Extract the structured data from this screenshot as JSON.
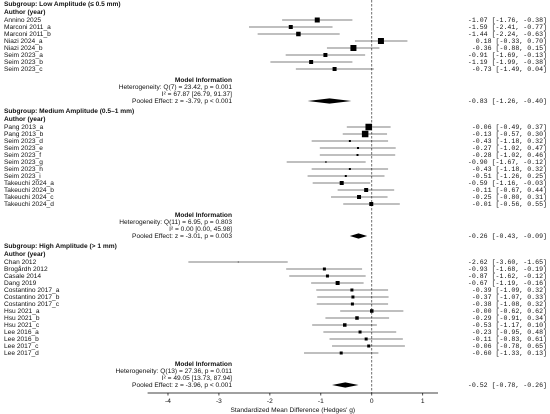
{
  "chart_data": {
    "type": "forest",
    "xlabel": "Standardized Mean Difference (Hedges' g)",
    "xlim": [
      -4.4,
      1.3
    ],
    "xticks": [
      -4,
      -3,
      -2,
      -1,
      0,
      1
    ],
    "reference_line": 0,
    "color": "#000000",
    "subgroups": [
      {
        "title": "Subgroup: Low Amplitude (≤ 0.5 mm)",
        "column_header": "Author (year)",
        "studies": [
          {
            "name": "Annino 2025",
            "estimate": -1.07,
            "ci": [
              -1.76,
              -0.38
            ],
            "weight": 5,
            "label": "-1.07 [-1.76, -0.38]"
          },
          {
            "name": "Marconi 2011_a",
            "estimate": -1.59,
            "ci": [
              -2.41,
              -0.77
            ],
            "weight": 4,
            "label": "-1.59 [-2.41, -0.77]"
          },
          {
            "name": "Marconi 2011_b",
            "estimate": -1.44,
            "ci": [
              -2.24,
              -0.63
            ],
            "weight": 4.5,
            "label": "-1.44 [-2.24, -0.63]"
          },
          {
            "name": "Niazi 2024_a",
            "estimate": 0.18,
            "ci": [
              -0.33,
              0.7
            ],
            "weight": 6,
            "label": "0.18 [-0.33, 0.70]"
          },
          {
            "name": "Niazi 2024_b",
            "estimate": -0.36,
            "ci": [
              -0.88,
              0.15
            ],
            "weight": 6,
            "label": "-0.36 [-0.88, 0.15]"
          },
          {
            "name": "Seim 2023_a",
            "estimate": -0.91,
            "ci": [
              -1.69,
              -0.13
            ],
            "weight": 4,
            "label": "-0.91 [-1.69, -0.13]"
          },
          {
            "name": "Seim 2023_b",
            "estimate": -1.19,
            "ci": [
              -1.99,
              -0.38
            ],
            "weight": 4,
            "label": "-1.19 [-1.99, -0.38]"
          },
          {
            "name": "Seim 2023_c",
            "estimate": -0.73,
            "ci": [
              -1.49,
              0.04
            ],
            "weight": 4,
            "label": "-0.73 [-1.49, 0.04]"
          }
        ],
        "model": {
          "heading": "Model Information",
          "heterogeneity": "Heterogeneity: Q(7) = 23.42, p = 0.001",
          "i2": "I² = 67.87 [26.79, 91.37]",
          "pooled_text": "Pooled Effect: z = -3.79, p < 0.001",
          "estimate": -0.83,
          "ci": [
            -1.26,
            -0.4
          ],
          "label": "-0.83 [-1.26, -0.40]"
        }
      },
      {
        "title": "Subgroup: Medium Amplitude (0.5–1 mm)",
        "column_header": "Author (year)",
        "studies": [
          {
            "name": "Pang 2013_a",
            "estimate": -0.06,
            "ci": [
              -0.49,
              0.37
            ],
            "weight": 6.5,
            "label": "-0.06 [-0.49, 0.37]"
          },
          {
            "name": "Pang 2013_b",
            "estimate": -0.13,
            "ci": [
              -0.57,
              0.3
            ],
            "weight": 6.5,
            "label": "-0.13 [-0.57, 0.30]"
          },
          {
            "name": "Seim 2023_d",
            "estimate": -0.43,
            "ci": [
              -1.18,
              0.32
            ],
            "weight": 2,
            "label": "-0.43 [-1.18, 0.32]"
          },
          {
            "name": "Seim 2023_e",
            "estimate": -0.27,
            "ci": [
              -1.02,
              0.47
            ],
            "weight": 2,
            "label": "-0.27 [-1.02, 0.47]"
          },
          {
            "name": "Seim 2023_f",
            "estimate": -0.28,
            "ci": [
              -1.02,
              0.46
            ],
            "weight": 2,
            "label": "-0.28 [-1.02, 0.46]"
          },
          {
            "name": "Seim 2023_g",
            "estimate": -0.9,
            "ci": [
              -1.67,
              -0.12
            ],
            "weight": 1.5,
            "label": "-0.90 [-1.67, -0.12]"
          },
          {
            "name": "Seim 2023_h",
            "estimate": -0.43,
            "ci": [
              -1.18,
              0.32
            ],
            "weight": 2,
            "label": "-0.43 [-1.18, 0.32]"
          },
          {
            "name": "Seim 2023_i",
            "estimate": -0.51,
            "ci": [
              -1.26,
              0.25
            ],
            "weight": 2,
            "label": "-0.51 [-1.26, 0.25]"
          },
          {
            "name": "Takeuchi 2024_a",
            "estimate": -0.59,
            "ci": [
              -1.16,
              -0.03
            ],
            "weight": 4,
            "label": "-0.59 [-1.16, -0.03]"
          },
          {
            "name": "Takeuchi 2024_b",
            "estimate": -0.11,
            "ci": [
              -0.67,
              0.44
            ],
            "weight": 4,
            "label": "-0.11 [-0.67, 0.44]"
          },
          {
            "name": "Takeuchi 2024_c",
            "estimate": -0.25,
            "ci": [
              -0.8,
              0.31
            ],
            "weight": 4,
            "label": "-0.25 [-0.80, 0.31]"
          },
          {
            "name": "Takeuchi 2024_d",
            "estimate": -0.01,
            "ci": [
              -0.56,
              0.55
            ],
            "weight": 4,
            "label": "-0.01 [-0.56, 0.55]"
          }
        ],
        "model": {
          "heading": "Model Information",
          "heterogeneity": "Heterogeneity: Q(11) = 6.95, p = 0.803",
          "i2": "I² = 0.00 [0.00, 45.98]",
          "pooled_text": "Pooled Effect: z = -3.01, p = 0.003",
          "estimate": -0.26,
          "ci": [
            -0.43,
            -0.09
          ],
          "label": "-0.26 [-0.43, -0.09]"
        }
      },
      {
        "title": "Subgroup: High Amplitude (> 1 mm)",
        "column_header": "Author (year)",
        "studies": [
          {
            "name": "Chan 2012",
            "estimate": -2.62,
            "ci": [
              -3.6,
              -1.65
            ],
            "weight": 1,
            "label": "-2.62 [-3.60, -1.65]"
          },
          {
            "name": "Brogårdh 2012",
            "estimate": -0.93,
            "ci": [
              -1.68,
              -0.19
            ],
            "weight": 3,
            "label": "-0.93 [-1.68, -0.19]"
          },
          {
            "name": "Casale 2014",
            "estimate": -0.87,
            "ci": [
              -1.62,
              -0.12
            ],
            "weight": 3,
            "label": "-0.87 [-1.62, -0.12]"
          },
          {
            "name": "Dang 2019",
            "estimate": -0.67,
            "ci": [
              -1.19,
              -0.16
            ],
            "weight": 4,
            "label": "-0.67 [-1.19, -0.16]"
          },
          {
            "name": "Costantino 2017_a",
            "estimate": -0.39,
            "ci": [
              -1.09,
              0.32
            ],
            "weight": 3,
            "label": "-0.39 [-1.09, 0.32]"
          },
          {
            "name": "Costantino 2017_b",
            "estimate": -0.37,
            "ci": [
              -1.07,
              0.33
            ],
            "weight": 3,
            "label": "-0.37 [-1.07, 0.33]"
          },
          {
            "name": "Costantino 2017_c",
            "estimate": -0.38,
            "ci": [
              -1.08,
              0.32
            ],
            "weight": 3,
            "label": "-0.38 [-1.08, 0.32]"
          },
          {
            "name": "Hsu 2021_a",
            "estimate": 0,
            "ci": [
              -0.62,
              0.62
            ],
            "weight": 3.5,
            "label": "-0.00 [-0.62, 0.62]"
          },
          {
            "name": "Hsu 2021_b",
            "estimate": -0.29,
            "ci": [
              -0.91,
              0.34
            ],
            "weight": 3.5,
            "label": "-0.29 [-0.91, 0.34]"
          },
          {
            "name": "Hsu 2021_c",
            "estimate": -0.53,
            "ci": [
              -1.17,
              0.1
            ],
            "weight": 3.5,
            "label": "-0.53 [-1.17, 0.10]"
          },
          {
            "name": "Lee 2016_a",
            "estimate": -0.23,
            "ci": [
              -0.95,
              0.48
            ],
            "weight": 3,
            "label": "-0.23 [-0.95, 0.48]"
          },
          {
            "name": "Lee 2016_b",
            "estimate": -0.11,
            "ci": [
              -0.83,
              0.61
            ],
            "weight": 3,
            "label": "-0.11 [-0.83, 0.61]"
          },
          {
            "name": "Lee 2017_c",
            "estimate": -0.06,
            "ci": [
              -0.78,
              0.65
            ],
            "weight": 3,
            "label": "-0.06 [-0.78, 0.65]"
          },
          {
            "name": "Lee 2017_d",
            "estimate": -0.6,
            "ci": [
              -1.33,
              0.13
            ],
            "weight": 3,
            "label": "-0.60 [-1.33, 0.13]"
          }
        ],
        "model": {
          "heading": "Model Information",
          "heterogeneity": "Heterogeneity: Q(13) = 27.36, p = 0.011",
          "i2": "I² = 49.05 [13.73, 87.94]",
          "pooled_text": "Pooled Effect: z = -3.96, p < 0.001",
          "estimate": -0.52,
          "ci": [
            -0.78,
            -0.26
          ],
          "label": "-0.52 [-0.78, -0.26]"
        }
      }
    ]
  }
}
